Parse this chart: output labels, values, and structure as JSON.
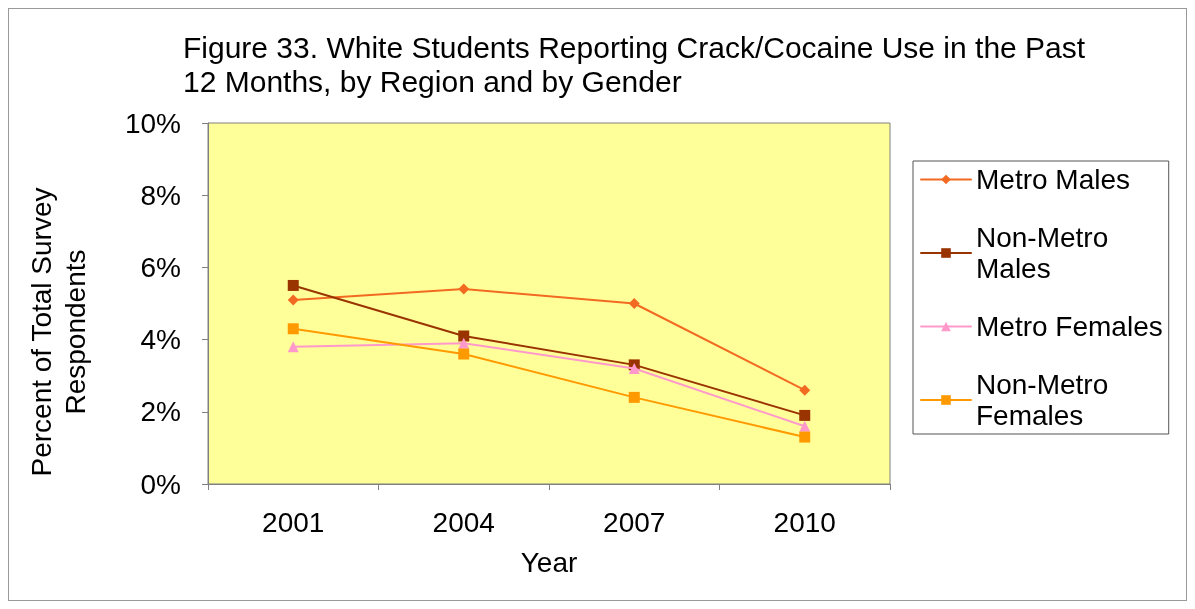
{
  "chart_data": {
    "type": "line",
    "title": "Figure 33. White Students Reporting Crack/Cocaine Use in the Past 12 Months, by Region and by Gender",
    "xlabel": "Year",
    "ylabel": "Percent of Total Survey Respondents",
    "categories": [
      "2001",
      "2004",
      "2007",
      "2010"
    ],
    "series": [
      {
        "name": "Metro Males",
        "color": "#f26a21",
        "marker": "diamond",
        "values": [
          5.1,
          5.4,
          5.0,
          2.6
        ]
      },
      {
        "name": "Non-Metro Males",
        "color": "#993300",
        "marker": "square",
        "values": [
          5.5,
          4.1,
          3.3,
          1.9
        ]
      },
      {
        "name": "Metro Females",
        "color": "#ff99cc",
        "marker": "triangle",
        "values": [
          3.8,
          3.9,
          3.2,
          1.6
        ]
      },
      {
        "name": "Non-Metro Females",
        "color": "#ff9900",
        "marker": "square",
        "values": [
          4.3,
          3.6,
          2.4,
          1.3
        ]
      }
    ],
    "ylim": [
      0,
      10
    ],
    "yticks": [
      {
        "value": 0,
        "label": "0%"
      },
      {
        "value": 2,
        "label": "2%"
      },
      {
        "value": 4,
        "label": "4%"
      },
      {
        "value": 6,
        "label": "6%"
      },
      {
        "value": 8,
        "label": "8%"
      },
      {
        "value": 10,
        "label": "10%"
      }
    ],
    "legend": "right"
  }
}
